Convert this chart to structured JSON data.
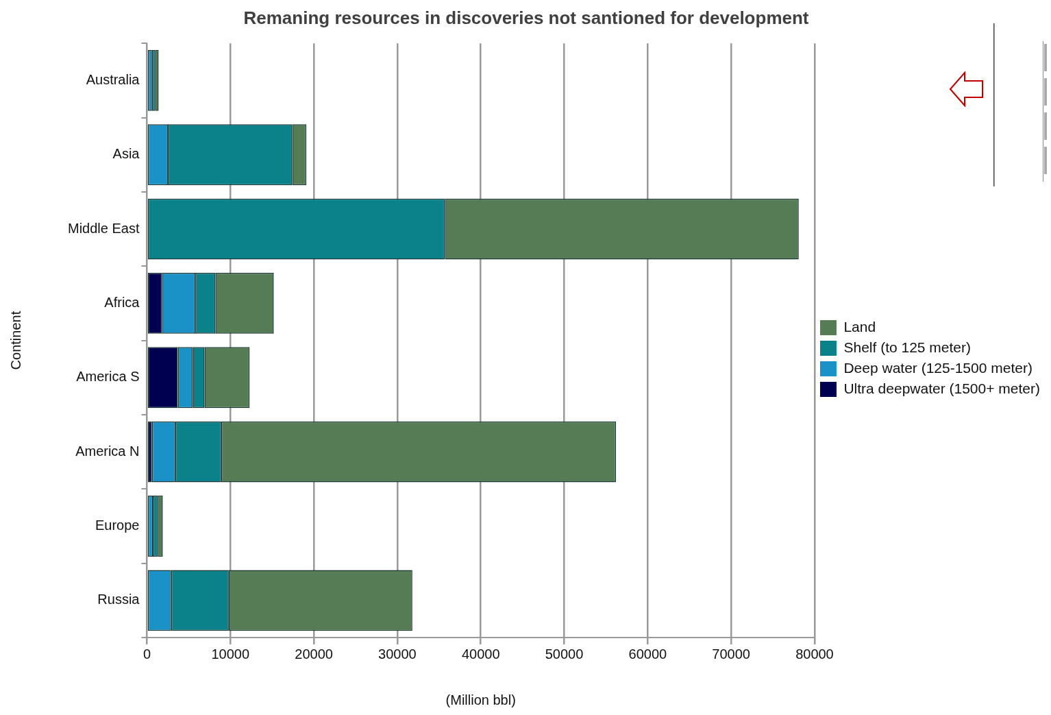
{
  "chart_data": {
    "type": "bar",
    "orientation": "horizontal",
    "stacked": true,
    "title": "Remaning resources in discoveries not santioned for development",
    "xlabel": "(Million bbl)",
    "ylabel": "Continent",
    "categories": [
      "Australia",
      "Asia",
      "Middle East",
      "Africa",
      "America S",
      "America N",
      "Europe",
      "Russia"
    ],
    "series": [
      {
        "name": "Ultra deepwater (1500+ meter)",
        "color": "#000050",
        "values": [
          null,
          100,
          null,
          1800,
          3700,
          600,
          null,
          null
        ]
      },
      {
        "name": "Deep water (125-1500 meter)",
        "color": "#1a92c8",
        "values": [
          600,
          2400,
          null,
          4000,
          1800,
          2800,
          700,
          2900
        ]
      },
      {
        "name": "Shelf (to 125 meter)",
        "color": "#0b8189",
        "values": [
          400,
          14900,
          35700,
          2400,
          1400,
          5500,
          600,
          6900
        ]
      },
      {
        "name": "Land",
        "color": "#557c55",
        "values": [
          400,
          1700,
          42400,
          7000,
          5400,
          47300,
          600,
          22000
        ]
      }
    ],
    "xlim": [
      0,
      80000
    ],
    "xticks": [
      0,
      10000,
      20000,
      30000,
      40000,
      50000,
      60000,
      70000,
      80000
    ],
    "grid": "x",
    "legend": "right"
  }
}
